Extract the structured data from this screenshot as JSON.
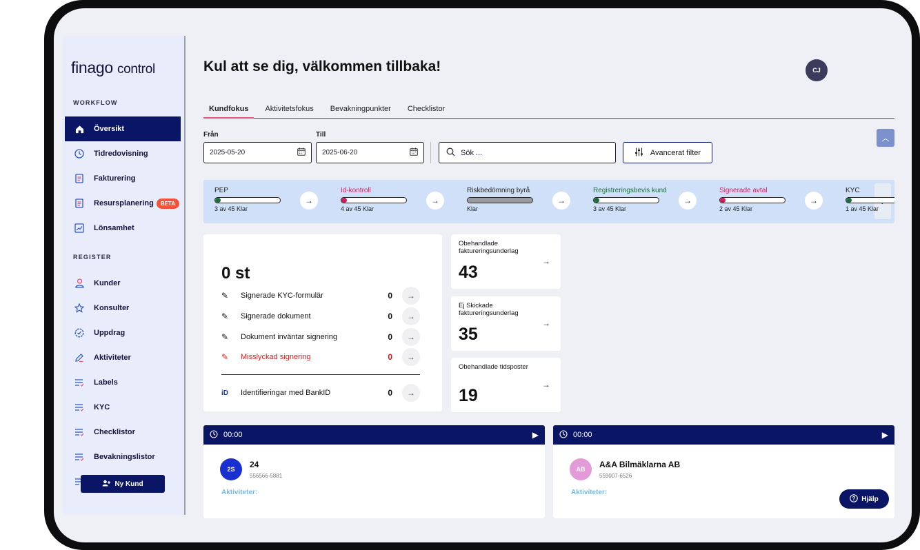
{
  "colors": {
    "navy": "#0a1565",
    "accent_pink": "#e8557a",
    "strip_bg": "#cfe0f8",
    "beta": "#f0543b"
  },
  "app": {
    "logo_brand": "finago",
    "logo_product": "control",
    "welcome": "Kul att se dig, välkommen tillbaka!",
    "user_initials": "CJ"
  },
  "sidebar": {
    "workflow_label": "WORKFLOW",
    "workflow_items": [
      {
        "label": "Översikt",
        "icon": "home-icon"
      },
      {
        "label": "Tidredovisning",
        "icon": "clock-icon"
      },
      {
        "label": "Fakturering",
        "icon": "document-icon"
      },
      {
        "label": "Resursplanering",
        "icon": "document-icon",
        "badge": "BETA"
      },
      {
        "label": "Lönsamhet",
        "icon": "chart-icon"
      }
    ],
    "register_label": "REGISTER",
    "register_items": [
      {
        "label": "Kunder",
        "icon": "user-icon"
      },
      {
        "label": "Konsulter",
        "icon": "star-icon"
      },
      {
        "label": "Uppdrag",
        "icon": "badge-check-icon"
      },
      {
        "label": "Aktiviteter",
        "icon": "pencil-icon"
      },
      {
        "label": "Labels",
        "icon": "list-icon"
      },
      {
        "label": "KYC",
        "icon": "list-icon"
      },
      {
        "label": "Checklistor",
        "icon": "list-icon"
      },
      {
        "label": "Bevakningslistor",
        "icon": "list-icon"
      }
    ],
    "new_customer": "Ny Kund"
  },
  "tabs": [
    "Kundfokus",
    "Aktivitetsfokus",
    "Bevakningpunkter",
    "Checklistor"
  ],
  "filters": {
    "from_label": "Från",
    "from_value": "2025-05-20",
    "to_label": "Till",
    "to_value": "2025-06-20",
    "search_placeholder": "Sök ...",
    "advanced": "Avancerat filter"
  },
  "progress": [
    {
      "title": "PEP",
      "status": "3 av 45 Klar",
      "fraction": 0.07,
      "color": "#1b6e3d",
      "title_style": "normal"
    },
    {
      "title": "Id-kontroll",
      "status": "4 av 45 Klar",
      "fraction": 0.09,
      "color": "#d81b60",
      "title_style": "pink"
    },
    {
      "title": "Riskbedömning byrå",
      "status": "Klar",
      "fraction": 1.0,
      "color": "#9a9aa2",
      "title_style": "normal"
    },
    {
      "title": "Registreringsbevis kund",
      "status": "3 av 45 Klar",
      "fraction": 0.07,
      "color": "#1b6e3d",
      "title_style": "green"
    },
    {
      "title": "Signerade avtal",
      "status": "2 av 45 Klar",
      "fraction": 0.05,
      "color": "#d81b60",
      "title_style": "pink"
    },
    {
      "title": "KYC",
      "status": "1 av 45 Klar",
      "fraction": 0.02,
      "color": "#1b6e3d",
      "title_style": "normal"
    }
  ],
  "signing": {
    "total": "0 st",
    "rows": [
      {
        "label": "Signerade KYC-formulär",
        "count": "0"
      },
      {
        "label": "Signerade dokument",
        "count": "0"
      },
      {
        "label": "Dokument inväntar signering",
        "count": "0"
      },
      {
        "label": "Misslyckad signering",
        "count": "0"
      }
    ],
    "bankid_row": {
      "label": "Identifieringar med BankID",
      "count": "0"
    }
  },
  "stats": [
    {
      "title": "Obehandlade faktureringsunderlag",
      "value": "43"
    },
    {
      "title": "Ej Skickade faktureringsunderlag",
      "value": "35"
    },
    {
      "title": "Obehandlade tidsposter",
      "value": "19"
    }
  ],
  "customers": [
    {
      "timer": "00:00",
      "initials": "2S",
      "name": "24",
      "org": "556566-5881",
      "activities": "Aktiviteter:",
      "avatar_color": "#1a2fd0"
    },
    {
      "timer": "00:00",
      "initials": "AB",
      "name": "A&A Bilmäklarna AB",
      "org": "559007-6526",
      "activities": "Aktiviteter:",
      "avatar_color": "#e39ad8"
    }
  ],
  "help": "Hjälp"
}
